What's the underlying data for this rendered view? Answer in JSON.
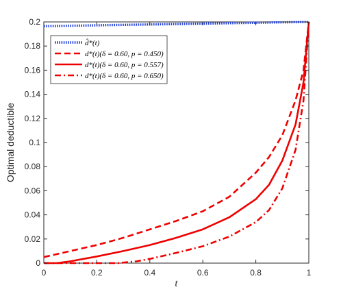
{
  "chart_data": {
    "type": "line",
    "xlabel": "t",
    "ylabel": "Optimal deductible",
    "xlim": [
      0,
      1
    ],
    "ylim": [
      0,
      0.2
    ],
    "xticks": [
      "0",
      "0.2",
      "0.4",
      "0.6",
      "0.8",
      "1"
    ],
    "yticks": [
      "0",
      "0.02",
      "0.04",
      "0.06",
      "0.08",
      "0.1",
      "0.12",
      "0.14",
      "0.16",
      "0.18",
      "0.2"
    ],
    "grid": false,
    "legend_position": "top-left",
    "series": [
      {
        "name": "d̂*(t)",
        "color": "#1f3fd8",
        "style": "dotted",
        "x": [
          0,
          0.2,
          0.4,
          0.6,
          0.8,
          1.0
        ],
        "y": [
          0.1965,
          0.1972,
          0.1979,
          0.1986,
          0.1993,
          0.2
        ]
      },
      {
        "name": "d*(t)(δ = 0.60, p = 0.450)",
        "color": "#ee0000",
        "style": "dashed",
        "x": [
          0,
          0.1,
          0.2,
          0.3,
          0.4,
          0.5,
          0.6,
          0.7,
          0.8,
          0.85,
          0.9,
          0.95,
          0.98,
          1.0
        ],
        "y": [
          0.005,
          0.01,
          0.015,
          0.021,
          0.028,
          0.035,
          0.043,
          0.055,
          0.075,
          0.088,
          0.106,
          0.135,
          0.16,
          0.2
        ]
      },
      {
        "name": "d*(t)(δ = 0.60, p = 0.557)",
        "color": "#ee0000",
        "style": "solid",
        "x": [
          0,
          0.05,
          0.1,
          0.2,
          0.3,
          0.4,
          0.5,
          0.6,
          0.7,
          0.8,
          0.85,
          0.9,
          0.95,
          0.98,
          1.0
        ],
        "y": [
          0,
          0,
          0.0015,
          0.0055,
          0.01,
          0.015,
          0.021,
          0.028,
          0.038,
          0.053,
          0.065,
          0.085,
          0.115,
          0.15,
          0.2
        ]
      },
      {
        "name": "d*(t)(δ = 0.60, p = 0.650)",
        "color": "#ee0000",
        "style": "dashdot",
        "x": [
          0,
          0.1,
          0.2,
          0.28,
          0.35,
          0.4,
          0.5,
          0.6,
          0.7,
          0.8,
          0.85,
          0.9,
          0.95,
          0.98,
          1.0
        ],
        "y": [
          0,
          0,
          0,
          0,
          0.0015,
          0.0035,
          0.0085,
          0.014,
          0.022,
          0.034,
          0.044,
          0.062,
          0.094,
          0.135,
          0.2
        ]
      }
    ]
  }
}
